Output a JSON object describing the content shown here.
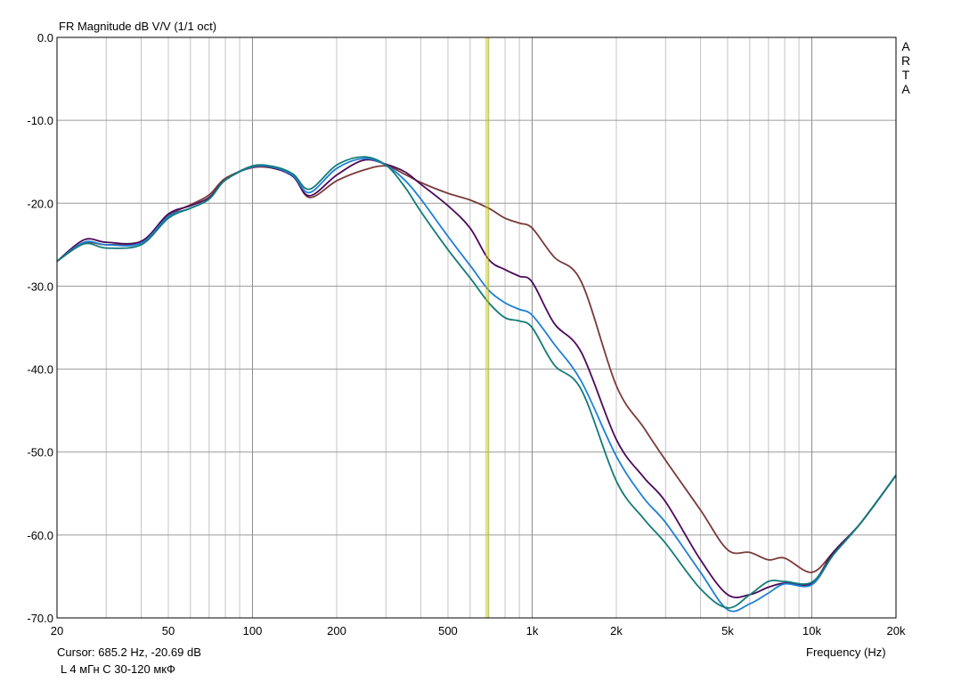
{
  "chart_data": {
    "type": "line",
    "title": "FR Magnitude dB V/V (1/1 oct)",
    "xlabel": "Frequency (Hz)",
    "ylabel": "",
    "x_scale": "log",
    "xlim": [
      20,
      20000
    ],
    "ylim": [
      -70,
      0
    ],
    "x_ticks": [
      {
        "value": 20,
        "label": "20"
      },
      {
        "value": 50,
        "label": "50"
      },
      {
        "value": 100,
        "label": "100"
      },
      {
        "value": 200,
        "label": "200"
      },
      {
        "value": 500,
        "label": "500"
      },
      {
        "value": 1000,
        "label": "1k"
      },
      {
        "value": 2000,
        "label": "2k"
      },
      {
        "value": 5000,
        "label": "5k"
      },
      {
        "value": 10000,
        "label": "10k"
      },
      {
        "value": 20000,
        "label": "20k"
      }
    ],
    "y_ticks": [
      {
        "value": 0,
        "label": "0.0"
      },
      {
        "value": -10,
        "label": "-10.0"
      },
      {
        "value": -20,
        "label": "-20.0"
      },
      {
        "value": -30,
        "label": "-30.0"
      },
      {
        "value": -40,
        "label": "-40.0"
      },
      {
        "value": -50,
        "label": "-50.0"
      },
      {
        "value": -60,
        "label": "-60.0"
      },
      {
        "value": -70,
        "label": "-70.0"
      }
    ],
    "grid": true,
    "cursor": {
      "x": 685.2,
      "y": -20.69,
      "color": "#c8c800"
    },
    "series": [
      {
        "color": "#7a3a3a",
        "x": [
          20,
          25,
          30,
          40,
          50,
          60,
          70,
          80,
          100,
          120,
          140,
          160,
          200,
          250,
          300,
          350,
          400,
          500,
          600,
          700,
          800,
          900,
          1000,
          1200,
          1500,
          2000,
          2500,
          3000,
          4000,
          5000,
          6000,
          7000,
          8000,
          10000,
          12000,
          15000,
          20000
        ],
        "y": [
          -27,
          -24.8,
          -25,
          -24.6,
          -21.5,
          -20.2,
          -19,
          -17,
          -15.7,
          -15.8,
          -16.7,
          -19.3,
          -17.3,
          -16,
          -15.5,
          -16.5,
          -17.5,
          -18.8,
          -19.6,
          -20.6,
          -21.8,
          -22.4,
          -23,
          -26.5,
          -29.5,
          -42,
          -47,
          -51,
          -57,
          -61.8,
          -62.1,
          -63,
          -62.8,
          -64.5,
          -62,
          -58.5,
          -52.8
        ]
      },
      {
        "color": "#4b0a5a",
        "x": [
          20,
          25,
          30,
          40,
          50,
          60,
          70,
          80,
          100,
          120,
          140,
          160,
          200,
          250,
          300,
          350,
          400,
          500,
          600,
          700,
          800,
          900,
          1000,
          1200,
          1500,
          2000,
          2500,
          3000,
          4000,
          5000,
          6000,
          7000,
          8000,
          10000,
          12000,
          15000,
          20000
        ],
        "y": [
          -27,
          -24.4,
          -24.7,
          -24.6,
          -21.3,
          -20.3,
          -19.3,
          -17.2,
          -15.6,
          -15.8,
          -16.8,
          -19.1,
          -16.6,
          -14.8,
          -15.3,
          -16.2,
          -17.7,
          -20.3,
          -23,
          -26.8,
          -28,
          -28.8,
          -29.5,
          -34.5,
          -38,
          -48.5,
          -53,
          -56,
          -63,
          -67.2,
          -67.2,
          -66.3,
          -65.8,
          -65.8,
          -62,
          -58.5,
          -52.8
        ]
      },
      {
        "color": "#1e7fd6",
        "x": [
          20,
          25,
          30,
          40,
          50,
          60,
          70,
          80,
          100,
          120,
          140,
          160,
          200,
          250,
          300,
          350,
          400,
          500,
          600,
          700,
          800,
          900,
          1000,
          1200,
          1500,
          2000,
          2500,
          3000,
          4000,
          5000,
          6000,
          7000,
          8000,
          10000,
          12000,
          15000,
          20000
        ],
        "y": [
          -27,
          -24.7,
          -25,
          -24.8,
          -21.6,
          -20.6,
          -19.5,
          -17.2,
          -15.6,
          -15.7,
          -16.7,
          -18.7,
          -15.8,
          -14.6,
          -15.4,
          -17.2,
          -19.5,
          -24,
          -27.5,
          -30.5,
          -32,
          -32.8,
          -33.5,
          -37,
          -41.5,
          -50.5,
          -55.5,
          -58.5,
          -64.5,
          -69,
          -68.3,
          -67,
          -65.9,
          -66,
          -62.3,
          -58.5,
          -52.8
        ]
      },
      {
        "color": "#137b78",
        "x": [
          20,
          25,
          30,
          40,
          50,
          60,
          70,
          80,
          100,
          120,
          140,
          160,
          200,
          250,
          300,
          350,
          400,
          500,
          600,
          700,
          800,
          900,
          1000,
          1200,
          1500,
          2000,
          2500,
          3000,
          4000,
          5000,
          6000,
          7000,
          8000,
          10000,
          12000,
          15000,
          20000
        ],
        "y": [
          -27,
          -24.9,
          -25.4,
          -25,
          -21.8,
          -20.6,
          -19.5,
          -17.2,
          -15.5,
          -15.6,
          -16.5,
          -18.3,
          -15.4,
          -14.4,
          -15.4,
          -18,
          -21,
          -25.6,
          -29,
          -32,
          -33.8,
          -34.2,
          -35,
          -39.5,
          -42.5,
          -53.5,
          -58,
          -61,
          -66.5,
          -68.8,
          -67.2,
          -65.6,
          -65.6,
          -65.7,
          -62.3,
          -58.5,
          -52.8
        ]
      }
    ]
  },
  "labels": {
    "title": "FR Magnitude dB V/V (1/1 oct)",
    "cursor_readout": "Cursor: 685.2 Hz, -20.69 dB",
    "note": "L 4 мГн C 30-120 мкФ",
    "xlabel": "Frequency (Hz)",
    "brand_letters": [
      "A",
      "R",
      "T",
      "A"
    ]
  }
}
